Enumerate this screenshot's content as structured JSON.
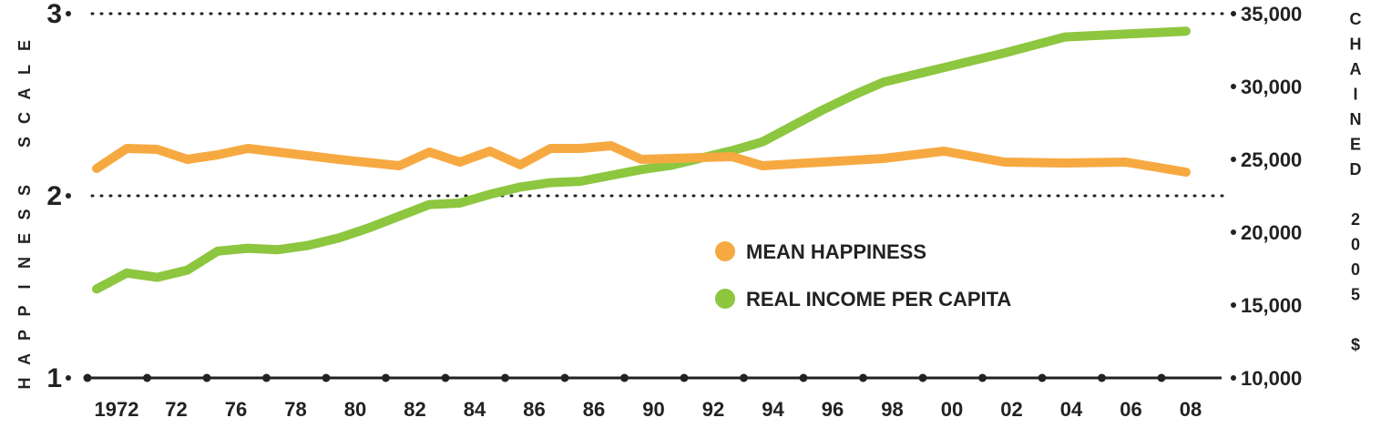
{
  "chart_data": {
    "type": "line",
    "title": "",
    "ylabel": "HAPPINESS SCALE",
    "y2label": "CHAINED 2005 $",
    "ylim": [
      1,
      3
    ],
    "y2lim": [
      10000,
      35000
    ],
    "left_ticks": [
      {
        "value": 3,
        "label": "3"
      },
      {
        "value": 2,
        "label": "2"
      },
      {
        "value": 1,
        "label": "1"
      }
    ],
    "right_ticks": [
      {
        "value": 35000,
        "label": "35,000"
      },
      {
        "value": 30000,
        "label": "30,000"
      },
      {
        "value": 25000,
        "label": "25,000"
      },
      {
        "value": 20000,
        "label": "20,000"
      },
      {
        "value": 15000,
        "label": "15,000"
      },
      {
        "value": 10000,
        "label": "10,000"
      }
    ],
    "categories": [
      "1972",
      "72",
      "76",
      "78",
      "80",
      "82",
      "84",
      "86",
      "86",
      "90",
      "92",
      "94",
      "96",
      "98",
      "00",
      "02",
      "04",
      "06",
      "08"
    ],
    "legend_position": "center-right",
    "gridlines": "dotted at y=2 and y=3",
    "series": [
      {
        "name": "MEAN HAPPINESS",
        "axis": "left",
        "color": "#F7A941",
        "points": [
          {
            "x": 1972,
            "y": 2.15
          },
          {
            "x": 1973,
            "y": 2.26
          },
          {
            "x": 1974,
            "y": 2.255
          },
          {
            "x": 1975,
            "y": 2.2
          },
          {
            "x": 1976,
            "y": 2.225
          },
          {
            "x": 1977,
            "y": 2.26
          },
          {
            "x": 1978,
            "y": 2.24
          },
          {
            "x": 1980,
            "y": 2.2
          },
          {
            "x": 1982,
            "y": 2.165
          },
          {
            "x": 1983,
            "y": 2.24
          },
          {
            "x": 1984,
            "y": 2.185
          },
          {
            "x": 1985,
            "y": 2.245
          },
          {
            "x": 1986,
            "y": 2.17
          },
          {
            "x": 1987,
            "y": 2.26
          },
          {
            "x": 1988,
            "y": 2.26
          },
          {
            "x": 1989,
            "y": 2.275
          },
          {
            "x": 1990,
            "y": 2.2
          },
          {
            "x": 1991,
            "y": 2.205
          },
          {
            "x": 1993,
            "y": 2.215
          },
          {
            "x": 1994,
            "y": 2.165
          },
          {
            "x": 1996,
            "y": 2.185
          },
          {
            "x": 1998,
            "y": 2.205
          },
          {
            "x": 2000,
            "y": 2.245
          },
          {
            "x": 2002,
            "y": 2.185
          },
          {
            "x": 2004,
            "y": 2.18
          },
          {
            "x": 2006,
            "y": 2.185
          },
          {
            "x": 2008,
            "y": 2.13
          }
        ]
      },
      {
        "name": "REAL INCOME PER CAPITA",
        "axis": "right",
        "color": "#8DC63F",
        "points": [
          {
            "x": 1972,
            "y": 16100
          },
          {
            "x": 1973,
            "y": 17200
          },
          {
            "x": 1974,
            "y": 16900
          },
          {
            "x": 1975,
            "y": 17400
          },
          {
            "x": 1976,
            "y": 18700
          },
          {
            "x": 1977,
            "y": 18900
          },
          {
            "x": 1978,
            "y": 18800
          },
          {
            "x": 1979,
            "y": 19100
          },
          {
            "x": 1980,
            "y": 19600
          },
          {
            "x": 1981,
            "y": 20300
          },
          {
            "x": 1982,
            "y": 21100
          },
          {
            "x": 1983,
            "y": 21900
          },
          {
            "x": 1984,
            "y": 22000
          },
          {
            "x": 1985,
            "y": 22600
          },
          {
            "x": 1986,
            "y": 23100
          },
          {
            "x": 1987,
            "y": 23400
          },
          {
            "x": 1988,
            "y": 23500
          },
          {
            "x": 1989,
            "y": 23900
          },
          {
            "x": 1990,
            "y": 24300
          },
          {
            "x": 1991,
            "y": 24600
          },
          {
            "x": 1992,
            "y": 25100
          },
          {
            "x": 1993,
            "y": 25600
          },
          {
            "x": 1994,
            "y": 26200
          },
          {
            "x": 1995,
            "y": 27300
          },
          {
            "x": 1996,
            "y": 28400
          },
          {
            "x": 1997,
            "y": 29400
          },
          {
            "x": 1998,
            "y": 30300
          },
          {
            "x": 2000,
            "y": 31300
          },
          {
            "x": 2002,
            "y": 32300
          },
          {
            "x": 2004,
            "y": 33400
          },
          {
            "x": 2006,
            "y": 33600
          },
          {
            "x": 2008,
            "y": 33800
          }
        ]
      }
    ]
  }
}
